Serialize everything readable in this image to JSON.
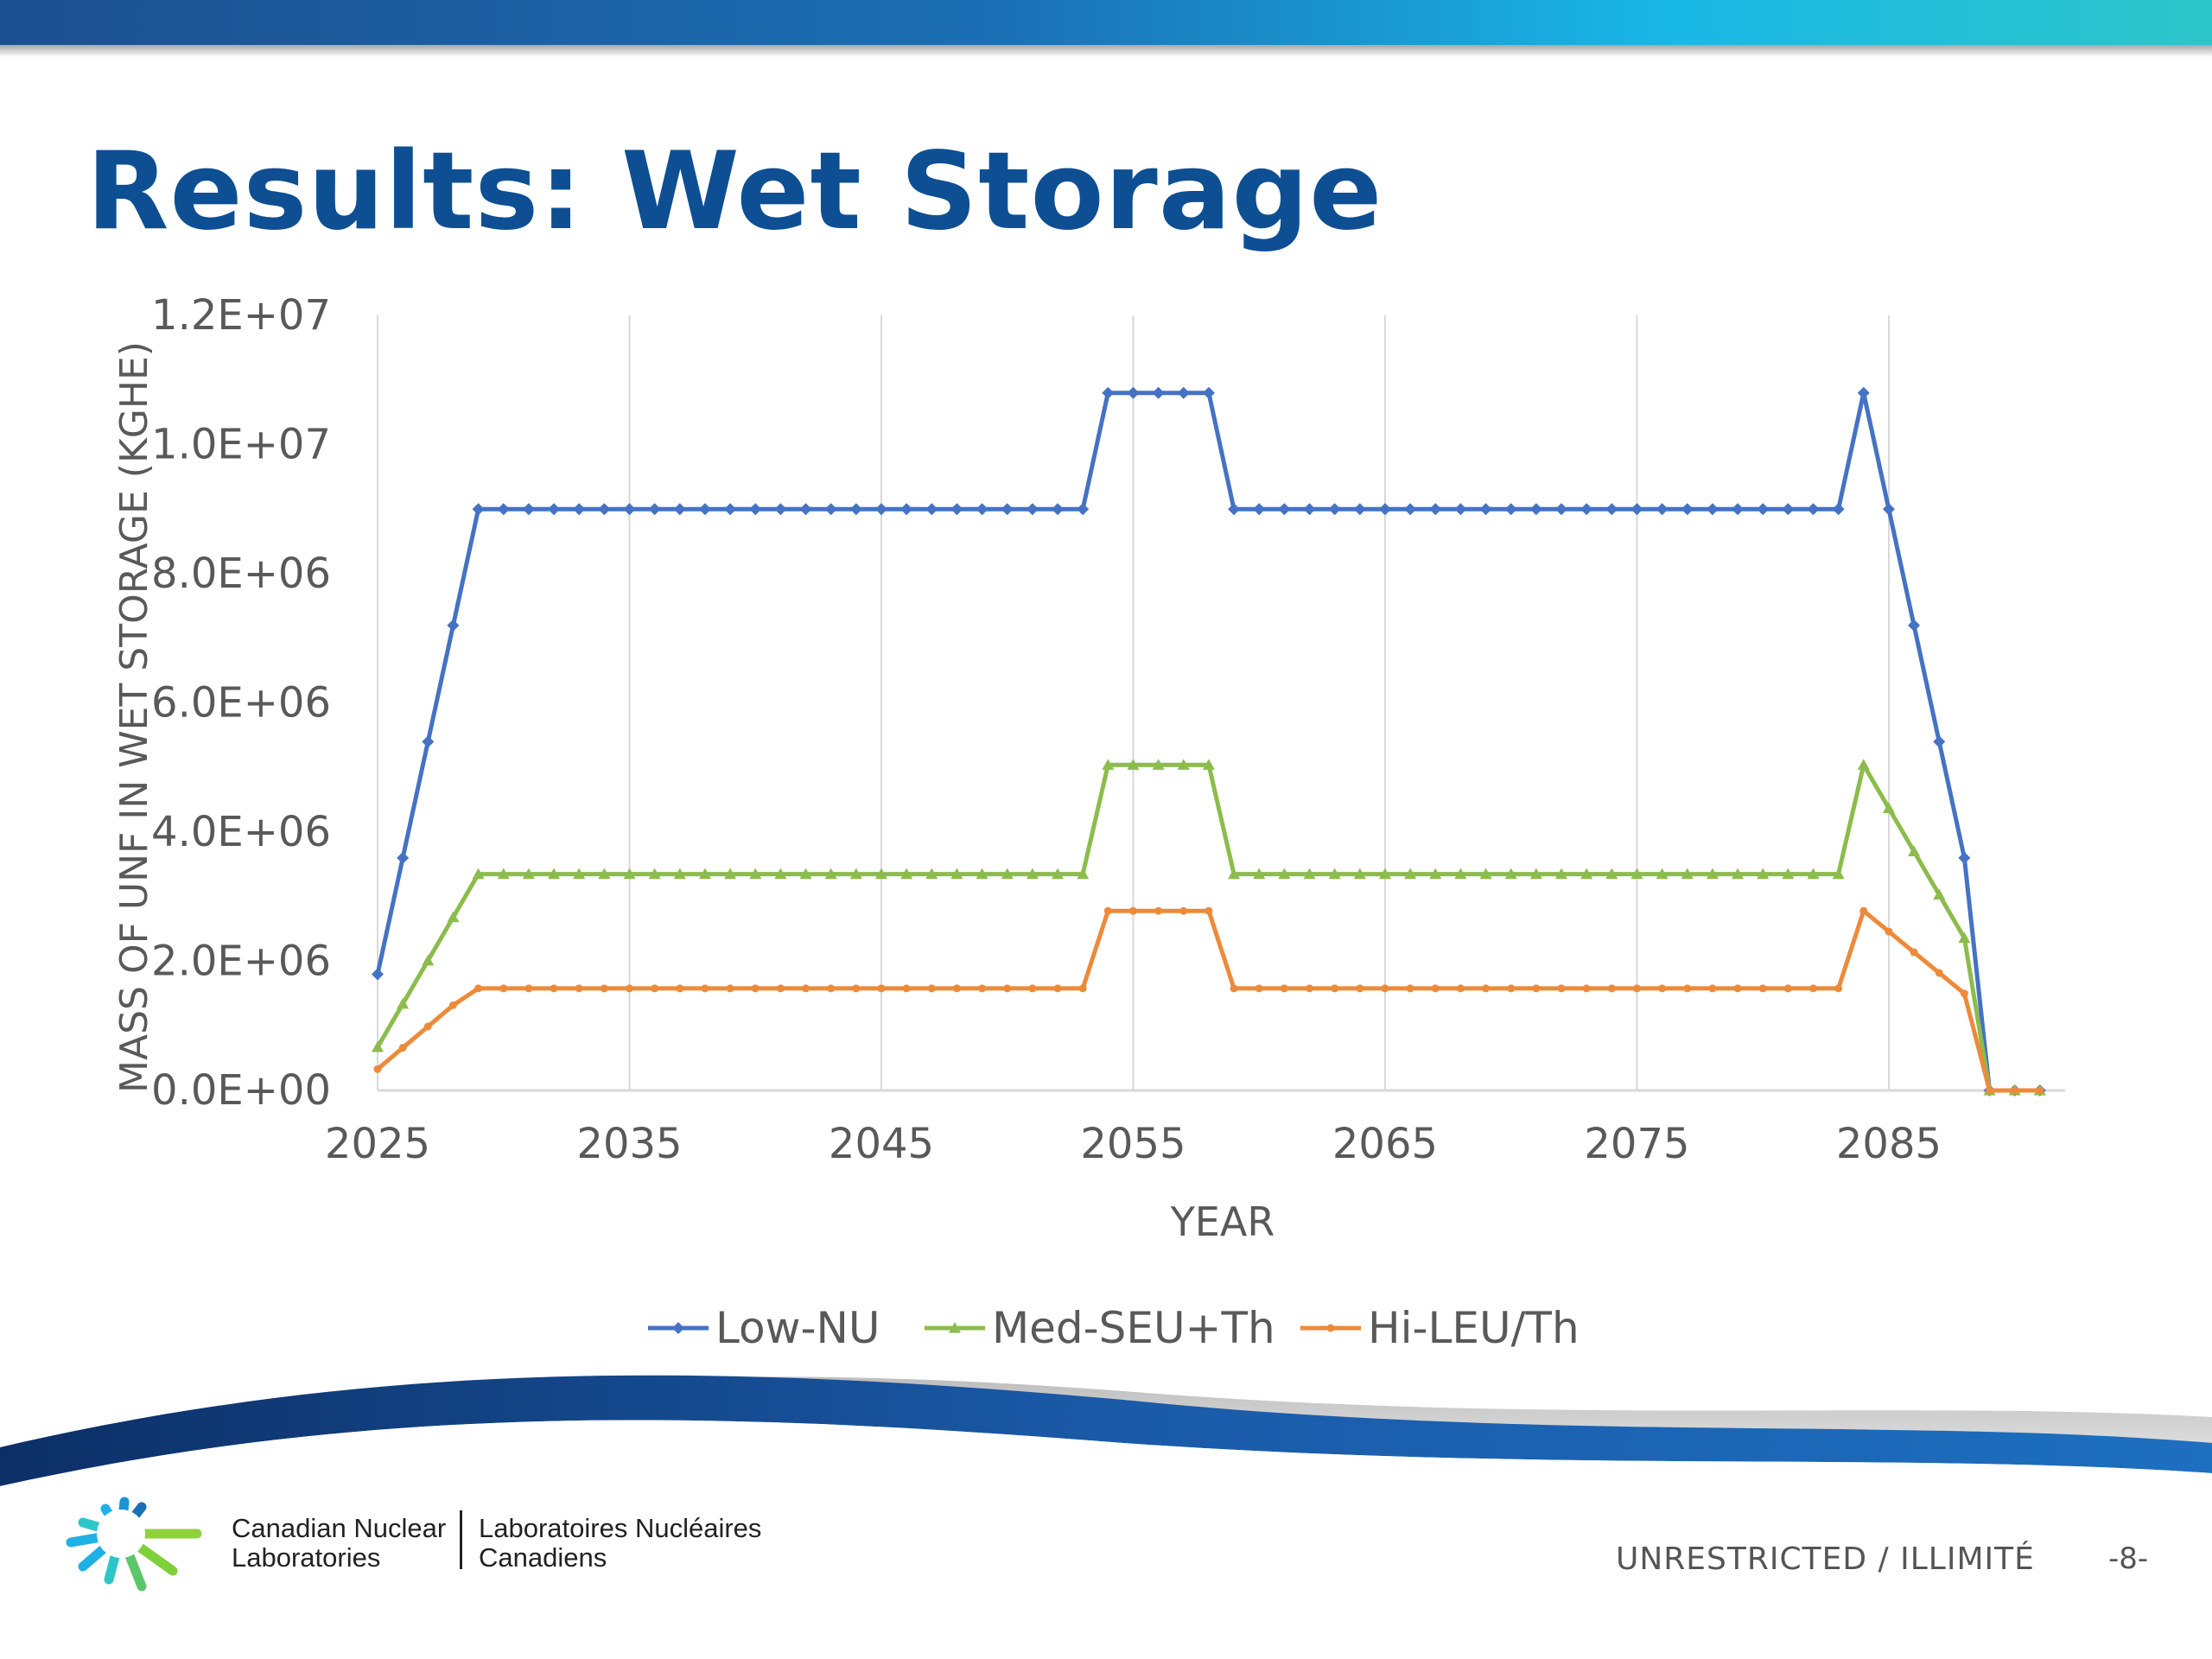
{
  "slide": {
    "title": "Results: Wet Storage",
    "classification": "UNRESTRICTED / ILLIMITÉ",
    "page_number": "-8-",
    "logo": {
      "english_line1": "Canadian Nuclear",
      "english_line2": "Laboratories",
      "french_line1": "Laboratoires Nucléaires",
      "french_line2": "Canadiens"
    },
    "colors": {
      "title": "#0e4f94",
      "low_nu": "#4472c4",
      "med_seu_th": "#8cbc4c",
      "hi_leu_th": "#ed8a3a"
    }
  },
  "chart_data": {
    "type": "line",
    "xlabel": "YEAR",
    "ylabel": "MASS OF UNF IN WET STORAGE (KGHE)",
    "xlim": [
      2025,
      2092
    ],
    "ylim": [
      0,
      12000000
    ],
    "x_ticks": [
      "2025",
      "2035",
      "2045",
      "2055",
      "2065",
      "2075",
      "2085"
    ],
    "y_ticks": [
      "0.0E+00",
      "2.0E+06",
      "4.0E+06",
      "6.0E+06",
      "8.0E+06",
      "1.0E+07",
      "1.2E+07"
    ],
    "grid": "vertical",
    "legend": "bottom",
    "x": [
      2025,
      2026,
      2027,
      2028,
      2029,
      2030,
      2031,
      2032,
      2033,
      2034,
      2035,
      2036,
      2037,
      2038,
      2039,
      2040,
      2041,
      2042,
      2043,
      2044,
      2045,
      2046,
      2047,
      2048,
      2049,
      2050,
      2051,
      2052,
      2053,
      2054,
      2055,
      2056,
      2057,
      2058,
      2059,
      2060,
      2061,
      2062,
      2063,
      2064,
      2065,
      2066,
      2067,
      2068,
      2069,
      2070,
      2071,
      2072,
      2073,
      2074,
      2075,
      2076,
      2077,
      2078,
      2079,
      2080,
      2081,
      2082,
      2083,
      2084,
      2085,
      2086,
      2087,
      2088,
      2089,
      2090,
      2091
    ],
    "series": [
      {
        "name": "Low-NU",
        "marker": "diamond",
        "values": [
          1800000,
          3600000,
          5400000,
          7200000,
          9000000,
          9000000,
          9000000,
          9000000,
          9000000,
          9000000,
          9000000,
          9000000,
          9000000,
          9000000,
          9000000,
          9000000,
          9000000,
          9000000,
          9000000,
          9000000,
          9000000,
          9000000,
          9000000,
          9000000,
          9000000,
          9000000,
          9000000,
          9000000,
          9000000,
          10800000,
          10800000,
          10800000,
          10800000,
          10800000,
          9000000,
          9000000,
          9000000,
          9000000,
          9000000,
          9000000,
          9000000,
          9000000,
          9000000,
          9000000,
          9000000,
          9000000,
          9000000,
          9000000,
          9000000,
          9000000,
          9000000,
          9000000,
          9000000,
          9000000,
          9000000,
          9000000,
          9000000,
          9000000,
          9000000,
          10800000,
          9000000,
          7200000,
          5400000,
          3600000,
          0,
          0,
          0
        ]
      },
      {
        "name": "Med-SEU+Th",
        "marker": "triangle",
        "values": [
          670000,
          1340000,
          2010000,
          2680000,
          3350000,
          3350000,
          3350000,
          3350000,
          3350000,
          3350000,
          3350000,
          3350000,
          3350000,
          3350000,
          3350000,
          3350000,
          3350000,
          3350000,
          3350000,
          3350000,
          3350000,
          3350000,
          3350000,
          3350000,
          3350000,
          3350000,
          3350000,
          3350000,
          3350000,
          5040000,
          5040000,
          5040000,
          5040000,
          5040000,
          3350000,
          3350000,
          3350000,
          3350000,
          3350000,
          3350000,
          3350000,
          3350000,
          3350000,
          3350000,
          3350000,
          3350000,
          3350000,
          3350000,
          3350000,
          3350000,
          3350000,
          3350000,
          3350000,
          3350000,
          3350000,
          3350000,
          3350000,
          3350000,
          3350000,
          5040000,
          4370000,
          3700000,
          3030000,
          2360000,
          0,
          0,
          0
        ]
      },
      {
        "name": "Hi-LEU/Th",
        "marker": "circle",
        "values": [
          330000,
          660000,
          990000,
          1320000,
          1580000,
          1580000,
          1580000,
          1580000,
          1580000,
          1580000,
          1580000,
          1580000,
          1580000,
          1580000,
          1580000,
          1580000,
          1580000,
          1580000,
          1580000,
          1580000,
          1580000,
          1580000,
          1580000,
          1580000,
          1580000,
          1580000,
          1580000,
          1580000,
          1580000,
          2780000,
          2780000,
          2780000,
          2780000,
          2780000,
          1580000,
          1580000,
          1580000,
          1580000,
          1580000,
          1580000,
          1580000,
          1580000,
          1580000,
          1580000,
          1580000,
          1580000,
          1580000,
          1580000,
          1580000,
          1580000,
          1580000,
          1580000,
          1580000,
          1580000,
          1580000,
          1580000,
          1580000,
          1580000,
          1580000,
          2780000,
          2460000,
          2140000,
          1820000,
          1500000,
          0,
          0,
          0
        ]
      }
    ]
  }
}
